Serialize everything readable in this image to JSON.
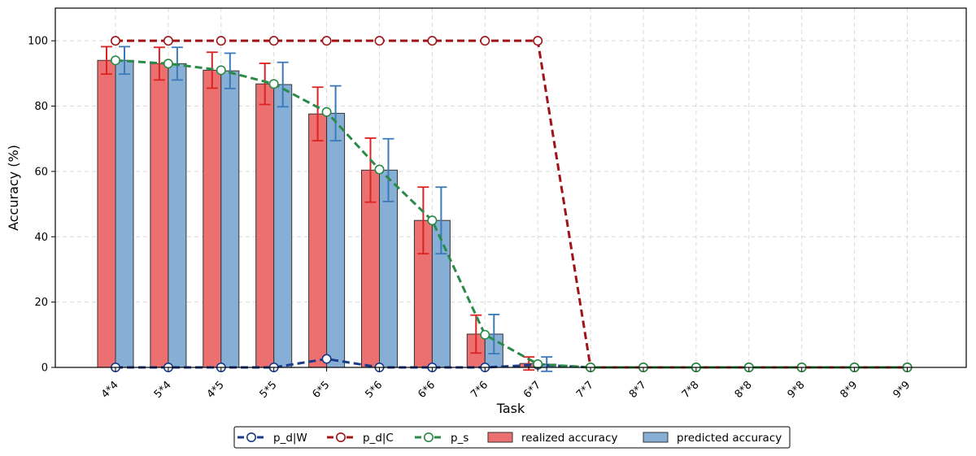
{
  "chart_data": {
    "type": "bar",
    "xlabel": "Task",
    "ylabel": "Accuracy (%)",
    "ylim": [
      0,
      110
    ],
    "yticks": [
      0,
      20,
      40,
      60,
      80,
      100
    ],
    "grid": true,
    "legend_position": "bottom-center",
    "categories": [
      "4*4",
      "5*4",
      "4*5",
      "5*5",
      "6*5",
      "5*6",
      "6*6",
      "7*6",
      "6*7",
      "7*7",
      "8*7",
      "7*8",
      "8*8",
      "9*8",
      "8*9",
      "9*9"
    ],
    "bar_series": [
      {
        "name": "realized accuracy",
        "color": "#ec7070",
        "error_color": "#dd2222",
        "values": [
          94,
          93,
          91,
          86.8,
          77.6,
          60.4,
          45,
          10.2,
          1.2,
          0,
          0,
          0,
          0,
          0,
          0,
          0
        ],
        "errors": [
          4.2,
          5,
          5.5,
          6.3,
          8.2,
          9.8,
          10.2,
          5.8,
          2,
          0,
          0,
          0,
          0,
          0,
          0,
          0
        ]
      },
      {
        "name": "predicted accuracy",
        "color": "#87afd6",
        "error_color": "#3a7ab8",
        "values": [
          94,
          93,
          90.8,
          86.6,
          77.8,
          60.4,
          45,
          10.2,
          1,
          0,
          0,
          0,
          0,
          0,
          0,
          0
        ],
        "errors": [
          4.2,
          5,
          5.4,
          6.8,
          8.4,
          9.6,
          10.2,
          6,
          2.2,
          0,
          0,
          0,
          0,
          0,
          0,
          0
        ]
      }
    ],
    "line_series": [
      {
        "name": "p_d|W",
        "color": "#1a3a8a",
        "values": [
          0,
          0,
          0,
          0,
          2.6,
          0,
          0,
          0,
          0.8,
          0,
          0,
          0,
          0,
          0,
          0,
          0
        ]
      },
      {
        "name": "p_d|C",
        "color": "#a01418",
        "values": [
          100,
          100,
          100,
          100,
          100,
          100,
          100,
          100,
          100,
          0,
          0,
          0,
          0,
          0,
          0,
          0
        ]
      },
      {
        "name": "p_s",
        "color": "#2a8a48",
        "values": [
          94,
          93,
          91,
          86.8,
          78.2,
          60.6,
          45,
          10,
          1,
          0,
          0,
          0,
          0,
          0,
          0,
          0
        ]
      }
    ],
    "legend": [
      "p_d|W",
      "p_d|C",
      "p_s",
      "realized accuracy",
      "predicted accuracy"
    ]
  }
}
